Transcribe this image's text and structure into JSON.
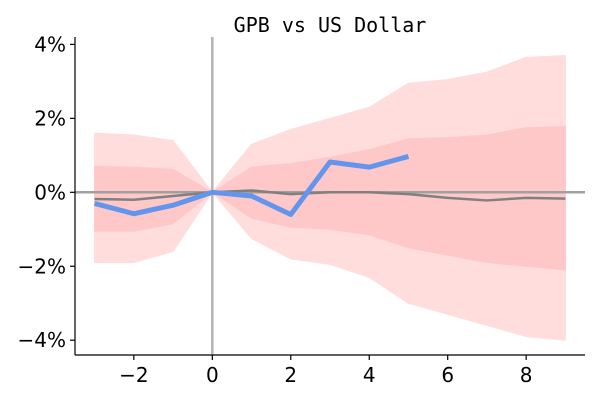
{
  "chart_data": {
    "type": "line",
    "title": "GPB vs US Dollar",
    "xlabel": "",
    "ylabel": "",
    "xlim": [
      -3.5,
      9.5
    ],
    "ylim": [
      -4.4,
      4.2
    ],
    "xticks": [
      -2,
      0,
      2,
      4,
      6,
      8
    ],
    "xtick_labels": [
      "−2",
      "0",
      "2",
      "4",
      "6",
      "8"
    ],
    "yticks": [
      -4,
      -2,
      0,
      2,
      4
    ],
    "ytick_labels": [
      "−4%",
      "−2%",
      "0%",
      "2%",
      "4%"
    ],
    "grid": false,
    "legend": "none",
    "reference_lines": {
      "x": 0,
      "y": 0
    },
    "bands": [
      {
        "x": [
          -3,
          -2,
          -1,
          0,
          1,
          2,
          3,
          4,
          5,
          6,
          7,
          8,
          9
        ],
        "lower": [
          -1.9,
          -1.9,
          -1.6,
          0,
          -1.25,
          -1.8,
          -1.95,
          -2.3,
          -3.0,
          -3.3,
          -3.6,
          -3.9,
          -4.0
        ],
        "upper": [
          1.6,
          1.55,
          1.4,
          0,
          1.3,
          1.7,
          2.0,
          2.3,
          2.95,
          3.05,
          3.25,
          3.65,
          3.7
        ],
        "color": "#ffdddd"
      },
      {
        "x": [
          -3,
          -2,
          -1,
          0,
          1,
          2,
          3,
          4,
          5,
          6,
          7,
          8,
          9
        ],
        "lower": [
          -1.05,
          -1.05,
          -0.85,
          0,
          -0.7,
          -0.95,
          -1.0,
          -1.15,
          -1.5,
          -1.7,
          -1.9,
          -2.0,
          -2.1
        ],
        "upper": [
          0.7,
          0.68,
          0.62,
          0,
          0.68,
          0.78,
          0.95,
          1.15,
          1.45,
          1.48,
          1.55,
          1.75,
          1.78
        ],
        "color": "#ffc8c8"
      }
    ],
    "series": [
      {
        "x": [
          -3,
          -2,
          -1,
          0,
          1,
          2,
          3,
          4,
          5,
          6,
          7,
          8,
          9
        ],
        "values": [
          -0.18,
          -0.2,
          -0.1,
          0,
          0.05,
          -0.05,
          0.0,
          0.0,
          -0.05,
          -0.15,
          -0.22,
          -0.15,
          -0.17
        ],
        "color": "#808080"
      },
      {
        "x": [
          -3,
          -2,
          -1,
          0,
          1,
          2,
          3,
          4,
          5
        ],
        "values": [
          -0.3,
          -0.58,
          -0.35,
          0,
          -0.1,
          -0.6,
          0.82,
          0.68,
          0.97
        ],
        "color": "#6495ed"
      }
    ],
    "colors": {
      "reference_line": "#b4b4b4"
    }
  }
}
